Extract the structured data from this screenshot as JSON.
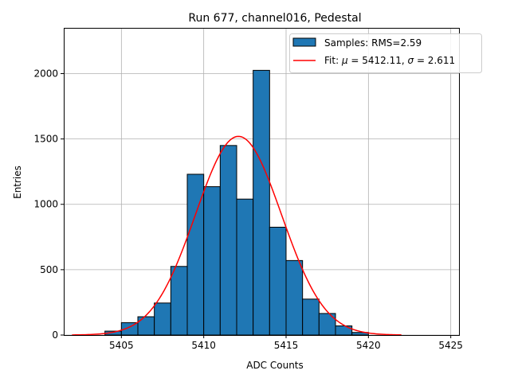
{
  "chart_data": {
    "type": "bar",
    "title": "Run 677, channel016, Pedestal",
    "xlabel": "ADC Counts",
    "ylabel": "Entries",
    "xlim": [
      5401.5,
      5425.5
    ],
    "ylim": [
      0,
      2350
    ],
    "x_ticks": [
      5405,
      5410,
      5415,
      5420,
      5425
    ],
    "y_ticks": [
      0,
      500,
      1000,
      1500,
      2000
    ],
    "grid": true,
    "legend_position": "top-right",
    "bin_width": 1,
    "bins": [
      {
        "x0": 5404,
        "x1": 5405,
        "count": 30
      },
      {
        "x0": 5405,
        "x1": 5406,
        "count": 95
      },
      {
        "x0": 5406,
        "x1": 5407,
        "count": 140
      },
      {
        "x0": 5407,
        "x1": 5408,
        "count": 245
      },
      {
        "x0": 5408,
        "x1": 5409,
        "count": 525
      },
      {
        "x0": 5409,
        "x1": 5410,
        "count": 1230
      },
      {
        "x0": 5410,
        "x1": 5411,
        "count": 1135
      },
      {
        "x0": 5411,
        "x1": 5412,
        "count": 1450
      },
      {
        "x0": 5412,
        "x1": 5413,
        "count": 1040
      },
      {
        "x0": 5413,
        "x1": 5414,
        "count": 2025
      },
      {
        "x0": 5414,
        "x1": 5415,
        "count": 825
      },
      {
        "x0": 5415,
        "x1": 5416,
        "count": 570
      },
      {
        "x0": 5416,
        "x1": 5417,
        "count": 275
      },
      {
        "x0": 5417,
        "x1": 5418,
        "count": 165
      },
      {
        "x0": 5418,
        "x1": 5419,
        "count": 70
      },
      {
        "x0": 5419,
        "x1": 5420,
        "count": 20
      }
    ],
    "fit": {
      "mu": 5412.11,
      "sigma": 2.611,
      "amplitude": 1520,
      "x_range": [
        5402,
        5422
      ]
    },
    "series": [
      {
        "name": "Samples: RMS=2.59",
        "kind": "histogram",
        "color": "#1f77b4",
        "edge_color": "#000000"
      },
      {
        "name": "Fit: μ = 5412.11, σ = 2.611",
        "kind": "line",
        "color": "#ff0000"
      }
    ]
  },
  "legend": {
    "samples_label": "Samples: RMS=2.59",
    "fit_prefix": "Fit: ",
    "mu_symbol": "μ",
    "mu_text": " = 5412.11, ",
    "sigma_symbol": "σ",
    "sigma_text": " = 2.611"
  }
}
